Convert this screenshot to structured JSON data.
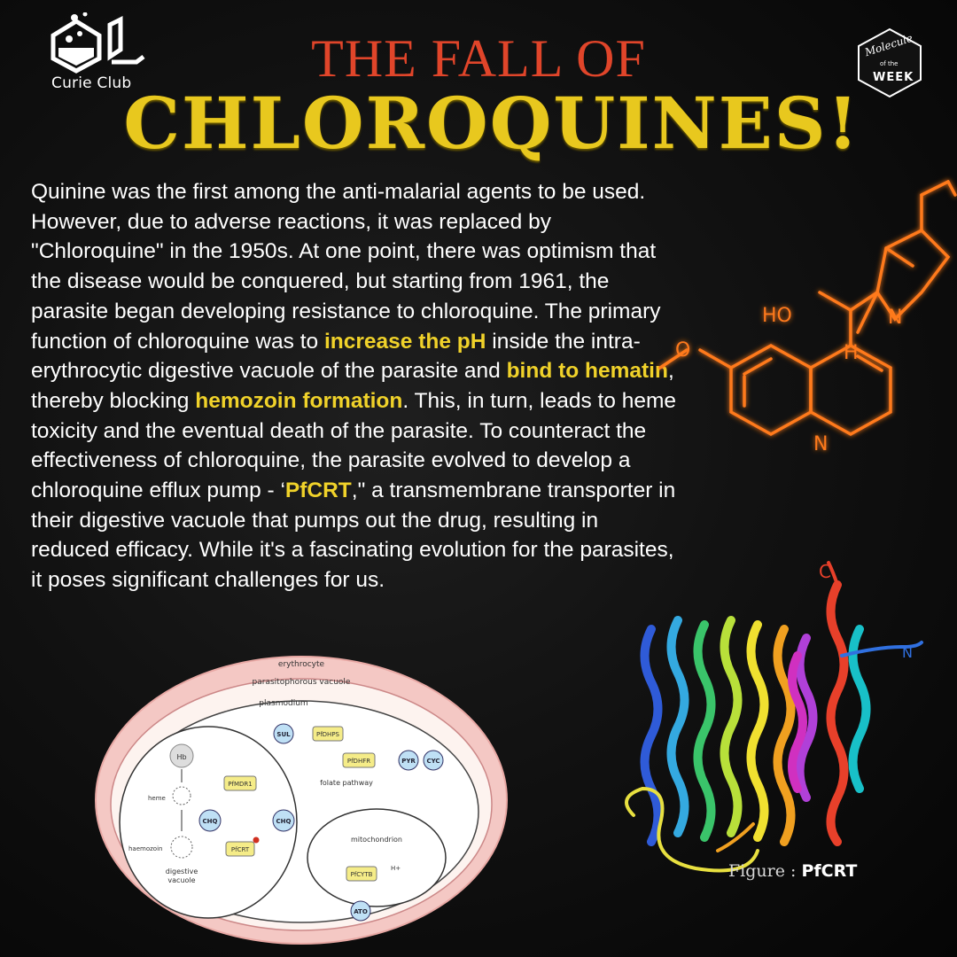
{
  "brand": {
    "name": "Curie Club",
    "badge_line1": "Molecule",
    "badge_line2": "of the",
    "badge_line3": "WEEK"
  },
  "title": {
    "line1": "THE FALL OF",
    "line2": "CHLOROQUINES!"
  },
  "body": {
    "s1": "Quinine was the first among the anti-malarial agents to be used. However, due to adverse reactions, it was replaced by \"Chloroquine\" in the 1950s. At one point, there was optimism that the disease would be conquered, but starting from 1961, the parasite began developing resistance to chloroquine. The primary function of chloroquine was to ",
    "h1": "increase the pH",
    "s2": " inside the intra-erythrocytic digestive vacuole of the parasite and ",
    "h2": "bind to hematin",
    "s3": ", thereby blocking ",
    "h3": "hemozoin formation",
    "s4": ". This, in turn, leads to heme toxicity and the eventual death of the parasite. To counteract the effectiveness of chloroquine, the parasite evolved to develop a chloroquine efflux pump - ‘",
    "h4": "PfCRT",
    "s5": ",\" a transmembrane transporter in their digestive vacuole that pumps out the drug, resulting in reduced efficacy. While it's a fascinating evolution for the parasites, it poses significant challenges for us."
  },
  "molecule": {
    "ho": "HO",
    "n1": "N",
    "n2": "N",
    "h": "H"
  },
  "protein": {
    "c": "C",
    "n": "N"
  },
  "figure": {
    "label": "Figure :",
    "name": "PfCRT"
  },
  "diagram": {
    "erythrocyte": "erythrocyte",
    "parasitophorous": "parasitophorous vacuole",
    "plasmodium": "plasmodium",
    "hb": "Hb",
    "heme": "heme",
    "haemozoin": "haemozoin",
    "chq": "CHQ",
    "pfmdr1": "PfMDR1",
    "pfcrt": "PfCRT",
    "digestive1": "digestive",
    "digestive2": "vacuole",
    "sul": "SUL",
    "pfdhps": "PfDHPS",
    "pfdhfr": "PfDHFR",
    "pyr": "PYR",
    "cyc": "CYC",
    "folate": "folate pathway",
    "mito": "mitochondrion",
    "pfcytb": "PfCYTB",
    "ato": "ATO",
    "hplus": "H+"
  },
  "colors": {
    "title_red": "#e0452a",
    "title_gold": "#e8c81e",
    "highlight": "#f0d22a",
    "molecule_orange": "#ff7a1a"
  }
}
